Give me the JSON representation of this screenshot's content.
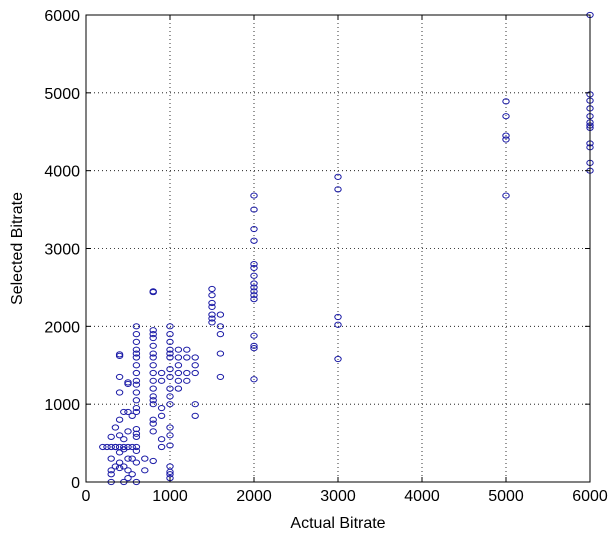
{
  "chart_data": {
    "type": "scatter",
    "title": "",
    "xlabel": "Actual Bitrate",
    "ylabel": "Selected Bitrate",
    "xlim": [
      0,
      6000
    ],
    "ylim": [
      0,
      6000
    ],
    "xticks": [
      0,
      1000,
      2000,
      3000,
      4000,
      5000,
      6000
    ],
    "yticks": [
      0,
      1000,
      2000,
      3000,
      4000,
      5000,
      6000
    ],
    "grid": true,
    "grid_style": "dotted",
    "marker": "open-circle",
    "marker_color": "#1a1aa6",
    "series": [
      {
        "points": [
          [
            200,
            450
          ],
          [
            250,
            450
          ],
          [
            300,
            450
          ],
          [
            350,
            450
          ],
          [
            400,
            450
          ],
          [
            450,
            450
          ],
          [
            500,
            450
          ],
          [
            550,
            450
          ],
          [
            600,
            450
          ],
          [
            300,
            0
          ],
          [
            300,
            100
          ],
          [
            300,
            150
          ],
          [
            300,
            300
          ],
          [
            300,
            580
          ],
          [
            350,
            200
          ],
          [
            350,
            450
          ],
          [
            350,
            700
          ],
          [
            400,
            180
          ],
          [
            400,
            250
          ],
          [
            400,
            380
          ],
          [
            400,
            600
          ],
          [
            400,
            800
          ],
          [
            400,
            1150
          ],
          [
            400,
            1350
          ],
          [
            400,
            1620
          ],
          [
            400,
            1640
          ],
          [
            450,
            0
          ],
          [
            450,
            200
          ],
          [
            450,
            420
          ],
          [
            450,
            550
          ],
          [
            450,
            900
          ],
          [
            500,
            50
          ],
          [
            500,
            150
          ],
          [
            500,
            300
          ],
          [
            500,
            650
          ],
          [
            500,
            900
          ],
          [
            500,
            1260
          ],
          [
            500,
            1280
          ],
          [
            550,
            100
          ],
          [
            550,
            300
          ],
          [
            550,
            850
          ],
          [
            600,
            0
          ],
          [
            600,
            250
          ],
          [
            600,
            400
          ],
          [
            600,
            580
          ],
          [
            600,
            620
          ],
          [
            600,
            680
          ],
          [
            600,
            900
          ],
          [
            600,
            950
          ],
          [
            600,
            1050
          ],
          [
            600,
            1150
          ],
          [
            600,
            1250
          ],
          [
            600,
            1300
          ],
          [
            600,
            1400
          ],
          [
            600,
            1500
          ],
          [
            600,
            1600
          ],
          [
            600,
            1650
          ],
          [
            600,
            1700
          ],
          [
            600,
            1800
          ],
          [
            600,
            1900
          ],
          [
            600,
            2000
          ],
          [
            700,
            150
          ],
          [
            700,
            300
          ],
          [
            800,
            270
          ],
          [
            800,
            650
          ],
          [
            800,
            750
          ],
          [
            800,
            800
          ],
          [
            800,
            1000
          ],
          [
            800,
            1050
          ],
          [
            800,
            1100
          ],
          [
            800,
            1200
          ],
          [
            800,
            1300
          ],
          [
            800,
            1400
          ],
          [
            800,
            1500
          ],
          [
            800,
            1600
          ],
          [
            800,
            1650
          ],
          [
            800,
            1750
          ],
          [
            800,
            1850
          ],
          [
            800,
            1900
          ],
          [
            800,
            1950
          ],
          [
            800,
            2440
          ],
          [
            800,
            2450
          ],
          [
            900,
            450
          ],
          [
            900,
            550
          ],
          [
            900,
            850
          ],
          [
            900,
            950
          ],
          [
            900,
            1300
          ],
          [
            900,
            1400
          ],
          [
            1000,
            50
          ],
          [
            1000,
            100
          ],
          [
            1000,
            130
          ],
          [
            1000,
            200
          ],
          [
            1000,
            470
          ],
          [
            1000,
            600
          ],
          [
            1000,
            700
          ],
          [
            1000,
            1000
          ],
          [
            1000,
            1100
          ],
          [
            1000,
            1200
          ],
          [
            1000,
            1350
          ],
          [
            1000,
            1450
          ],
          [
            1000,
            1600
          ],
          [
            1000,
            1650
          ],
          [
            1000,
            1700
          ],
          [
            1000,
            1800
          ],
          [
            1000,
            1900
          ],
          [
            1000,
            2000
          ],
          [
            1100,
            1200
          ],
          [
            1100,
            1300
          ],
          [
            1100,
            1400
          ],
          [
            1100,
            1500
          ],
          [
            1100,
            1600
          ],
          [
            1100,
            1700
          ],
          [
            1200,
            1300
          ],
          [
            1200,
            1400
          ],
          [
            1200,
            1600
          ],
          [
            1200,
            1700
          ],
          [
            1300,
            850
          ],
          [
            1300,
            1000
          ],
          [
            1300,
            1400
          ],
          [
            1300,
            1500
          ],
          [
            1300,
            1600
          ],
          [
            1500,
            2050
          ],
          [
            1500,
            2100
          ],
          [
            1500,
            2150
          ],
          [
            1500,
            2250
          ],
          [
            1500,
            2300
          ],
          [
            1500,
            2400
          ],
          [
            1500,
            2480
          ],
          [
            1600,
            1350
          ],
          [
            1600,
            1650
          ],
          [
            1600,
            1900
          ],
          [
            1600,
            2000
          ],
          [
            1600,
            2150
          ],
          [
            2000,
            1320
          ],
          [
            2000,
            1720
          ],
          [
            2000,
            1750
          ],
          [
            2000,
            1880
          ],
          [
            2000,
            2350
          ],
          [
            2000,
            2400
          ],
          [
            2000,
            2450
          ],
          [
            2000,
            2500
          ],
          [
            2000,
            2550
          ],
          [
            2000,
            2650
          ],
          [
            2000,
            2750
          ],
          [
            2000,
            2800
          ],
          [
            2000,
            3100
          ],
          [
            2000,
            3250
          ],
          [
            2000,
            3500
          ],
          [
            2000,
            3680
          ],
          [
            3000,
            1580
          ],
          [
            3000,
            2020
          ],
          [
            3000,
            2120
          ],
          [
            3000,
            3760
          ],
          [
            3000,
            3920
          ],
          [
            5000,
            3680
          ],
          [
            5000,
            4400
          ],
          [
            5000,
            4450
          ],
          [
            5000,
            4700
          ],
          [
            5000,
            4890
          ],
          [
            6000,
            4000
          ],
          [
            6000,
            4100
          ],
          [
            6000,
            4300
          ],
          [
            6000,
            4350
          ],
          [
            6000,
            4550
          ],
          [
            6000,
            4580
          ],
          [
            6000,
            4620
          ],
          [
            6000,
            4700
          ],
          [
            6000,
            4800
          ],
          [
            6000,
            4900
          ],
          [
            6000,
            4980
          ],
          [
            6000,
            6000
          ]
        ]
      }
    ]
  }
}
